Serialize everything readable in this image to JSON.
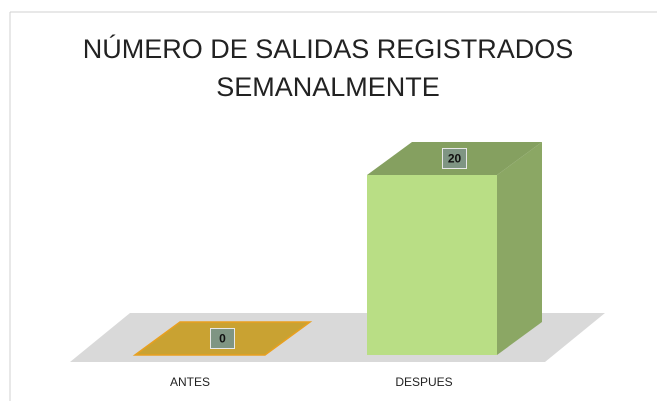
{
  "chart_data": {
    "type": "bar3d",
    "title": "NÚMERO DE SALIDAS REGISTRADOS SEMANALMENTE",
    "categories": [
      "ANTES",
      "DESPUES"
    ],
    "values": [
      0,
      20
    ],
    "colors": [
      "#c9a232",
      "#b9de85"
    ]
  }
}
